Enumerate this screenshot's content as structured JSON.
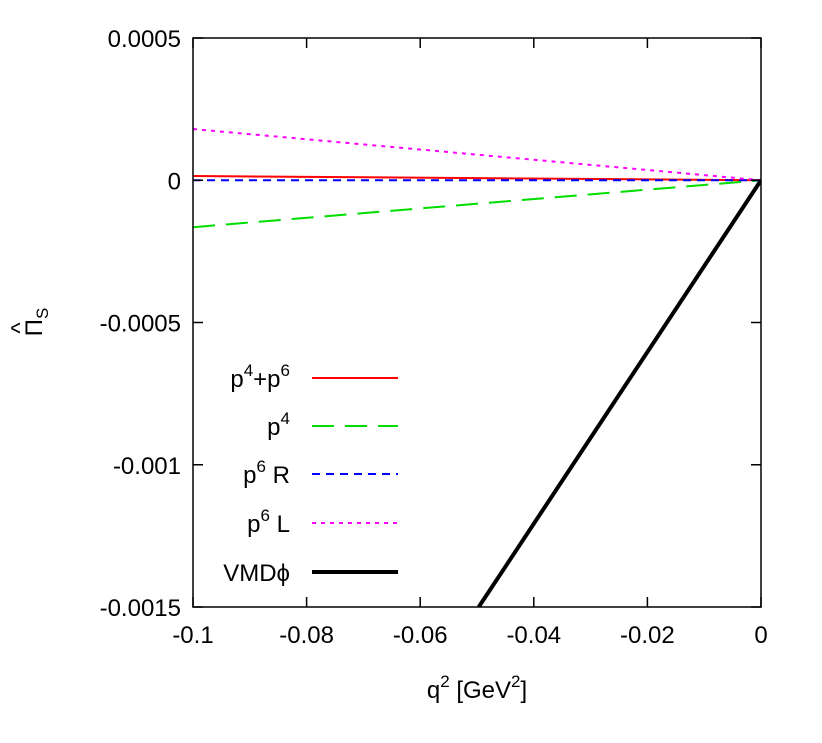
{
  "chart_data": {
    "type": "line",
    "xlabel": {
      "base": "q",
      "sup": "2",
      "mid": " [GeV",
      "sup2": "2",
      "tail": "]"
    },
    "ylabel": {
      "hat": "^",
      "base": "Π",
      "sub": "S"
    },
    "xlim": [
      -0.1,
      0
    ],
    "ylim": [
      -0.0015,
      0.0005
    ],
    "xticks": [
      -0.1,
      -0.08,
      -0.06,
      -0.04,
      -0.02,
      0
    ],
    "xtick_labels": [
      "-0.1",
      "-0.08",
      "-0.06",
      "-0.04",
      "-0.02",
      "0"
    ],
    "yticks": [
      0.0005,
      0,
      -0.0005,
      -0.001,
      -0.0015
    ],
    "ytick_labels": [
      "0.0005",
      "0",
      "-0.0005",
      "-0.001",
      "-0.0015"
    ],
    "grid": false,
    "legend_position": "left",
    "series": [
      {
        "name": "p⁴+p⁶",
        "label": {
          "t1": "p",
          "s1": "4",
          "t2": "+p",
          "s2": "6"
        },
        "color": "#ff0000",
        "dash": "solid",
        "x": [
          -0.1,
          0
        ],
        "y": [
          1.5e-05,
          0
        ]
      },
      {
        "name": "p⁴",
        "label": {
          "t1": "p",
          "s1": "4",
          "t2": "",
          "s2": ""
        },
        "color": "#00dd00",
        "dash": "long",
        "x": [
          -0.1,
          0
        ],
        "y": [
          -0.000165,
          0
        ]
      },
      {
        "name": "p⁶ R",
        "label": {
          "t1": "p",
          "s1": "6",
          "t2": " R",
          "s2": ""
        },
        "color": "#0000ff",
        "dash": "short",
        "x": [
          -0.1,
          0
        ],
        "y": [
          0,
          0
        ]
      },
      {
        "name": "p⁶ L",
        "label": {
          "t1": "p",
          "s1": "6",
          "t2": " L",
          "s2": ""
        },
        "color": "#ff00ff",
        "dash": "dot",
        "x": [
          -0.1,
          0
        ],
        "y": [
          0.00018,
          0
        ]
      },
      {
        "name": "VMDϕ",
        "label": {
          "t1": "VMDϕ",
          "s1": "",
          "t2": "",
          "s2": ""
        },
        "color": "#000000",
        "dash": "thick",
        "x": [
          -0.0497,
          0
        ],
        "y": [
          -0.0015,
          0
        ]
      }
    ]
  }
}
